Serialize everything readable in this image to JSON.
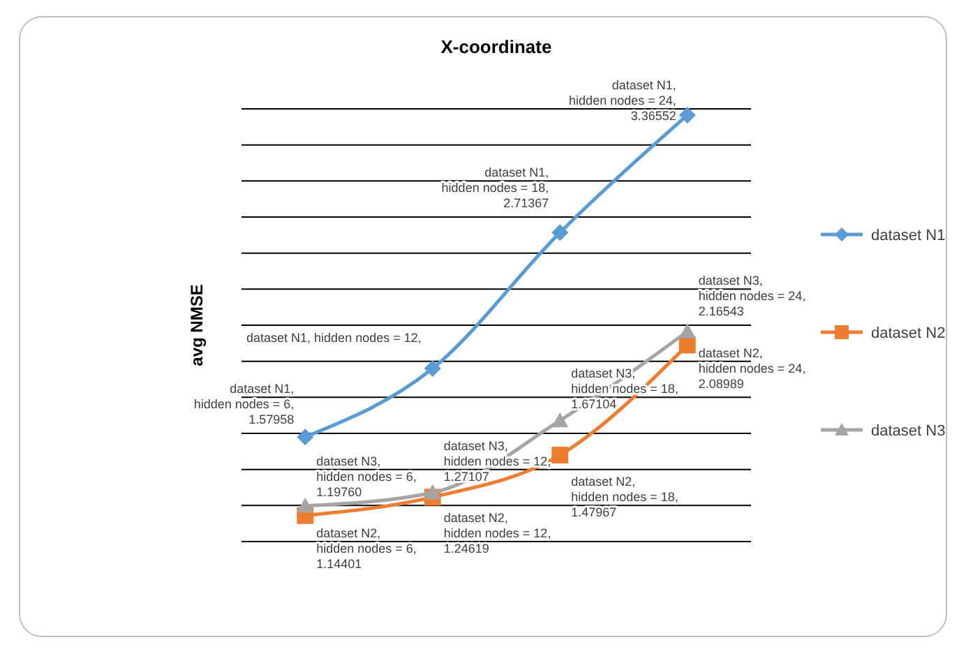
{
  "chart_data": {
    "type": "line",
    "title": "X-coordinate",
    "ylabel": "avg NMSE",
    "categories": [
      null,
      null,
      null,
      null
    ],
    "ylim": [
      1.0,
      3.4
    ],
    "yticks": [
      {
        "value": 1.0,
        "label": null
      },
      {
        "value": 1.2,
        "label": null
      },
      {
        "value": 1.4,
        "label": null
      },
      {
        "value": 1.6,
        "label": null
      },
      {
        "value": 1.8,
        "label": null
      },
      {
        "value": 2.0,
        "label": null
      },
      {
        "value": 2.2,
        "label": null
      },
      {
        "value": 2.4,
        "label": null
      },
      {
        "value": 2.6,
        "label": null
      },
      {
        "value": 2.8,
        "label": null
      },
      {
        "value": 3.0,
        "label": null
      },
      {
        "value": 3.2,
        "label": null
      },
      {
        "value": 3.4,
        "label": null
      }
    ],
    "grid": "y",
    "legend": "right",
    "series": [
      {
        "name": "dataset N1",
        "color": "#5b9bd5",
        "marker": "diamond",
        "values": [
          1.57958,
          1.96,
          2.71367,
          3.36552
        ],
        "value_labels": [
          "dataset N1, hidden nodes = 6, 1.57958",
          "dataset N1, hidden nodes = 12,",
          "dataset N1, hidden nodes = 18, 2.71367",
          "dataset N1, hidden nodes = 24, 3.36552"
        ]
      },
      {
        "name": "dataset N2",
        "color": "#ed7d31",
        "marker": "square",
        "values": [
          1.14401,
          1.24619,
          1.47967,
          2.08989
        ],
        "value_labels": [
          "dataset N2, hidden nodes = 6, 1.14401",
          "dataset N2, hidden nodes = 12, 1.24619",
          "dataset N2, hidden nodes = 18, 1.47967",
          "dataset N2, hidden nodes = 24, 2.08989"
        ]
      },
      {
        "name": "dataset N3",
        "color": "#a5a5a5",
        "marker": "triangle",
        "values": [
          1.1976,
          1.27107,
          1.67104,
          2.16543
        ],
        "value_labels": [
          "dataset N3, hidden nodes = 6, 1.19760",
          "dataset N3, hidden nodes = 12, 1.27107",
          "dataset N3, hidden nodes = 18, 1.67104",
          "dataset N3, hidden nodes = 24, 2.16543"
        ]
      }
    ]
  }
}
